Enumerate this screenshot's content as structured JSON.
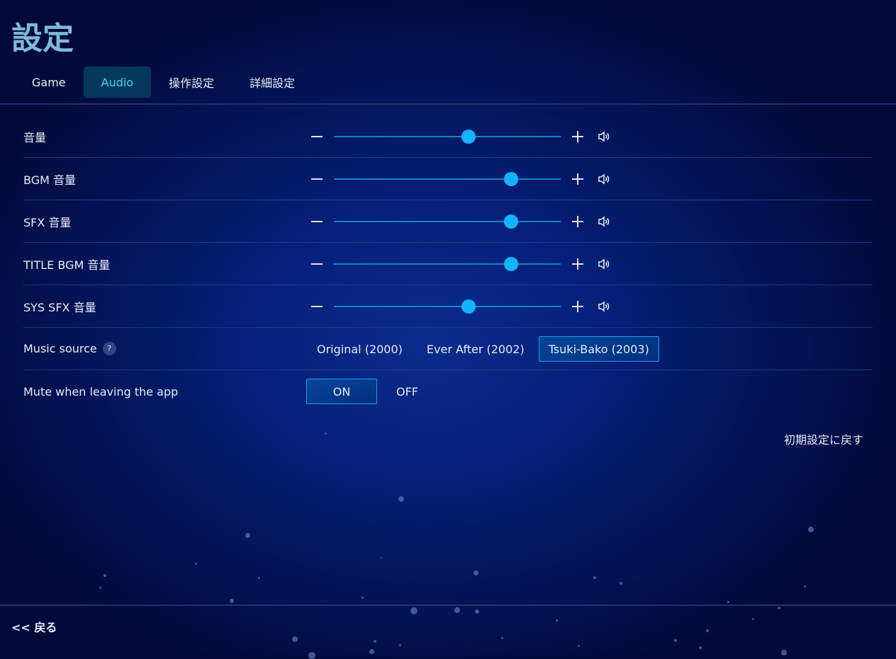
{
  "title": "設定",
  "tabs": [
    {
      "label": "Game"
    },
    {
      "label": "Audio",
      "active": true
    },
    {
      "label": "操作設定"
    },
    {
      "label": "詳細設定"
    }
  ],
  "sliders": [
    {
      "label": "音量",
      "value": 60
    },
    {
      "label": "BGM 音量",
      "value": 80
    },
    {
      "label": "SFX 音量",
      "value": 80
    },
    {
      "label": "TITLE BGM 音量",
      "value": 80
    },
    {
      "label": "SYS SFX 音量",
      "value": 60
    }
  ],
  "music_source": {
    "label": "Music source",
    "help": "?",
    "options": [
      "Original (2000)",
      "Ever After (2002)",
      "Tsuki-Bako (2003)"
    ],
    "selected": "Tsuki-Bako (2003)"
  },
  "mute": {
    "label": "Mute when leaving the app",
    "options": [
      "ON",
      "OFF"
    ],
    "selected": "ON"
  },
  "reset_label": "初期設定に戻す",
  "back_label": "<< 戻る",
  "colors": {
    "accent": "#12b4ff",
    "title": "#7fb9d6",
    "active_tab_bg": "#04385e"
  }
}
